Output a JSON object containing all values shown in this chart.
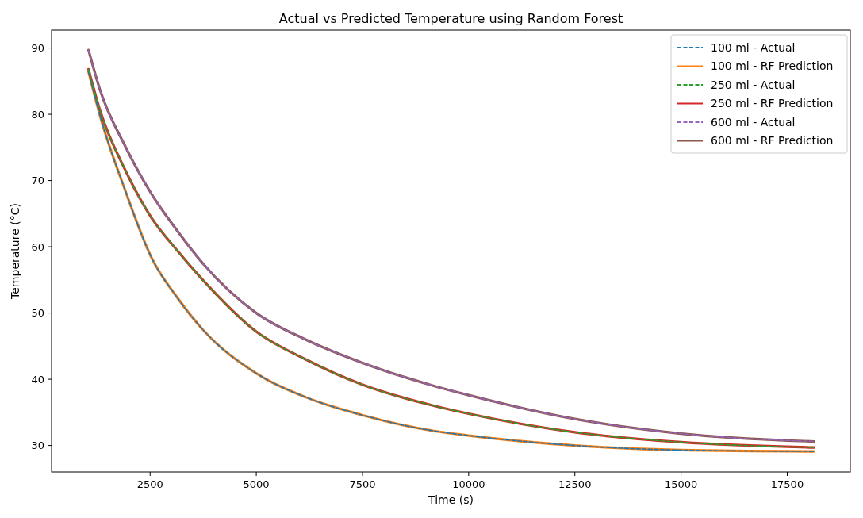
{
  "chart_data": {
    "type": "line",
    "title": "Actual vs Predicted Temperature using Random Forest",
    "xlabel": "Time (s)",
    "ylabel": "Temperature (°C)",
    "x": [
      1050,
      1320,
      1920,
      2530,
      3130,
      3740,
      5000,
      6160,
      7490,
      9180,
      10000,
      12500,
      15000,
      18130
    ],
    "series": [
      {
        "name": "100 ml - Actual",
        "color": "#1f77b4",
        "line_style": "dashed",
        "values": [
          86.4,
          79.8,
          68.4,
          58.4,
          52.4,
          47.5,
          40.9,
          37.3,
          34.6,
          32.2,
          31.5,
          30.0,
          29.3,
          29.1
        ]
      },
      {
        "name": "100 ml - RF Prediction",
        "color": "#ff7f0e",
        "line_style": "solid",
        "values": [
          86.4,
          79.8,
          68.4,
          58.4,
          52.4,
          47.5,
          40.9,
          37.3,
          34.6,
          32.2,
          31.5,
          30.0,
          29.3,
          29.1
        ]
      },
      {
        "name": "250 ml - Actual",
        "color": "#2ca02c",
        "line_style": "dashed",
        "values": [
          86.8,
          80.6,
          71.5,
          64.4,
          59.5,
          55.0,
          47.2,
          43.0,
          39.2,
          36.0,
          34.8,
          32.0,
          30.5,
          29.7
        ]
      },
      {
        "name": "250 ml - RF Prediction",
        "color": "#d62728",
        "line_style": "solid",
        "values": [
          86.8,
          80.6,
          71.5,
          64.4,
          59.5,
          55.0,
          47.2,
          43.0,
          39.2,
          36.0,
          34.8,
          32.0,
          30.5,
          29.7
        ]
      },
      {
        "name": "600 ml - Actual",
        "color": "#9467bd",
        "line_style": "dashed",
        "values": [
          89.7,
          83.7,
          75.1,
          68.0,
          62.5,
          57.5,
          50.0,
          46.0,
          42.5,
          39.0,
          37.6,
          34.0,
          31.8,
          30.6
        ]
      },
      {
        "name": "600 ml - RF Prediction",
        "color": "#8c564b",
        "line_style": "solid",
        "values": [
          89.7,
          83.7,
          75.1,
          68.0,
          62.5,
          57.5,
          50.0,
          46.0,
          42.5,
          39.0,
          37.6,
          34.0,
          31.8,
          30.6
        ]
      }
    ],
    "xlim": [
      180,
      18985
    ],
    "xticks": [
      2500,
      5000,
      7500,
      10000,
      12500,
      15000,
      17500
    ],
    "ylim": [
      26,
      92.7
    ],
    "yticks": [
      30,
      40,
      50,
      60,
      70,
      80,
      90
    ],
    "grid": false,
    "legend": "top right",
    "marker": "none"
  }
}
